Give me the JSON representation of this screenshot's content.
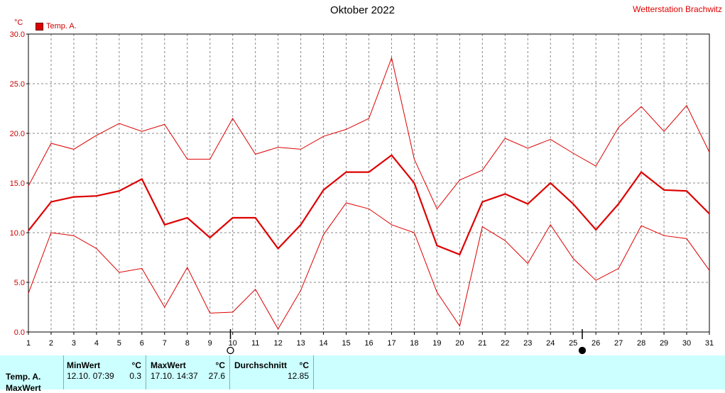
{
  "header": {
    "title": "Oktober 2022",
    "station": "Wetterstation Brachwitz",
    "unit": "°C",
    "legend_label": "Temp. A."
  },
  "stats": {
    "row_label": "Temp. A.",
    "row_label_2": "MaxWert",
    "min_header": "MinWert",
    "min_unit": "°C",
    "min_time": "12.10.  07:39",
    "min_value": "0.3",
    "max_header": "MaxWert",
    "max_unit": "°C",
    "max_time": "17.10.  14:37",
    "max_value": "27.6",
    "avg_header": "Durchschnitt",
    "avg_unit": "°C",
    "avg_value": "12.85"
  },
  "colors": {
    "series": "#dd0000",
    "grid": "#888888",
    "axis": "#000000",
    "stats_bg": "#ccffff"
  },
  "chart_data": {
    "type": "line",
    "x": [
      1,
      2,
      3,
      4,
      5,
      6,
      7,
      8,
      9,
      10,
      11,
      12,
      13,
      14,
      15,
      16,
      17,
      18,
      19,
      20,
      21,
      22,
      23,
      24,
      25,
      26,
      27,
      28,
      29,
      30,
      31
    ],
    "ylim": [
      0,
      30
    ],
    "yticks": [
      "0.0",
      "5.0",
      "10.0",
      "15.0",
      "20.0",
      "25.0",
      "30.0"
    ],
    "grid": true,
    "moon_phases": [
      {
        "day": 9.9,
        "phase": "full"
      },
      {
        "day": 25.4,
        "phase": "new"
      }
    ],
    "series": [
      {
        "role": "max",
        "values": [
          14.7,
          19.0,
          18.4,
          19.8,
          21.0,
          20.2,
          20.9,
          17.4,
          17.4,
          21.5,
          17.9,
          18.6,
          18.4,
          19.7,
          20.4,
          21.5,
          27.6,
          17.4,
          12.4,
          15.3,
          16.3,
          19.5,
          18.5,
          19.4,
          18.0,
          16.7,
          20.6,
          22.7,
          20.2,
          22.8,
          18.1
        ]
      },
      {
        "role": "mean",
        "values": [
          10.2,
          13.1,
          13.6,
          13.7,
          14.2,
          15.4,
          10.8,
          11.5,
          9.5,
          11.5,
          11.5,
          8.4,
          10.8,
          14.3,
          16.1,
          16.1,
          17.8,
          15.0,
          8.7,
          7.8,
          13.1,
          13.9,
          12.9,
          15.0,
          12.9,
          10.3,
          12.9,
          16.1,
          14.3,
          14.2,
          11.9
        ]
      },
      {
        "role": "min",
        "values": [
          3.9,
          10.0,
          9.7,
          8.4,
          6.0,
          6.4,
          2.5,
          6.5,
          1.9,
          2.0,
          4.3,
          0.3,
          4.2,
          9.8,
          13.0,
          12.4,
          10.8,
          10.0,
          4.0,
          0.6,
          10.6,
          9.2,
          6.9,
          10.8,
          7.4,
          5.2,
          6.4,
          10.7,
          9.7,
          9.4,
          6.2
        ]
      }
    ]
  }
}
